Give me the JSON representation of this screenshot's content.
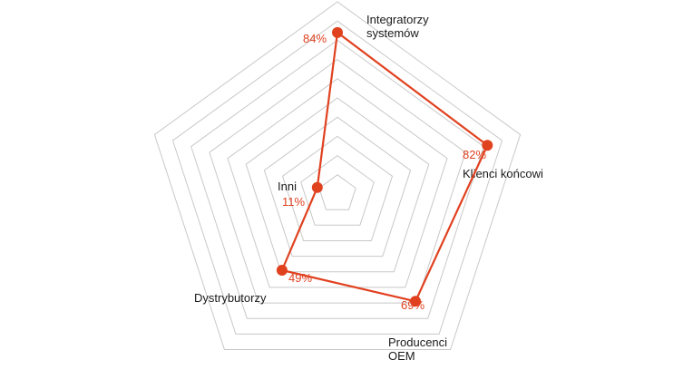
{
  "chart_data": {
    "type": "radar",
    "title": "",
    "max": 100,
    "rings": 10,
    "categories": [
      [
        "Integratorzy",
        "systemów"
      ],
      [
        "Klienci końcowi"
      ],
      [
        "Producenci",
        "OEM"
      ],
      [
        "Dystrybutorzy"
      ],
      [
        "Inni"
      ]
    ],
    "values": [
      84,
      82,
      69,
      49,
      11
    ],
    "value_labels": [
      "84%",
      "82%",
      "69%",
      "49%",
      "11%"
    ],
    "series_color": "#e0411f",
    "grid_color": "#c8c8c8",
    "grid": true,
    "legend": "none"
  }
}
